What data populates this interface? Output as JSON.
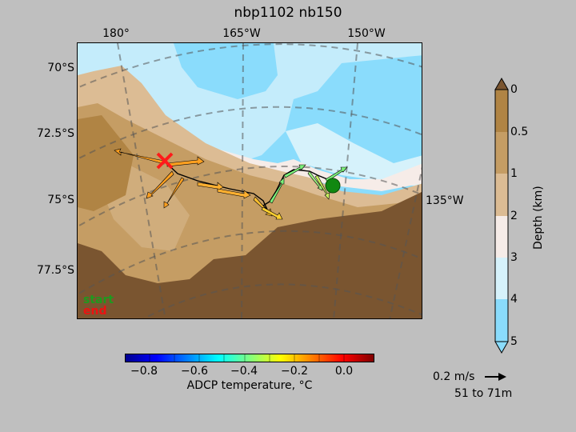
{
  "title": "nbp1102 nb150",
  "map": {
    "lon_labels": [
      "180°",
      "165°W",
      "150°W"
    ],
    "lon_label_right": "135°W",
    "lat_labels": [
      "70°S",
      "72.5°S",
      "75°S",
      "77.5°S"
    ],
    "legend_start": "start",
    "legend_end": "end"
  },
  "temperature_bar": {
    "label": "ADCP temperature, °C",
    "ticks": [
      "−0.8",
      "−0.6",
      "−0.4",
      "−0.2",
      "0.0"
    ],
    "colors": [
      "#00008f",
      "#0000ff",
      "#0080ff",
      "#00ffff",
      "#80ff80",
      "#ffff00",
      "#ff8000",
      "#ff0000",
      "#800000"
    ]
  },
  "depth_bar": {
    "label": "Depth (km)",
    "ticks": [
      "0",
      "0.5",
      "1",
      "2",
      "3",
      "4",
      "5"
    ],
    "colors": [
      "#7a5530",
      "#b08444",
      "#c59d64",
      "#dcbc94",
      "#f6ece8",
      "#d6f2fb",
      "#aee6fa",
      "#8adcfc"
    ]
  },
  "vector_scale": {
    "label": "0.2 m/s",
    "depth_range": "51 to 71m"
  },
  "colors": {
    "start_marker": "#118811",
    "end_marker": "#ff1a1a",
    "track": "#000000"
  }
}
